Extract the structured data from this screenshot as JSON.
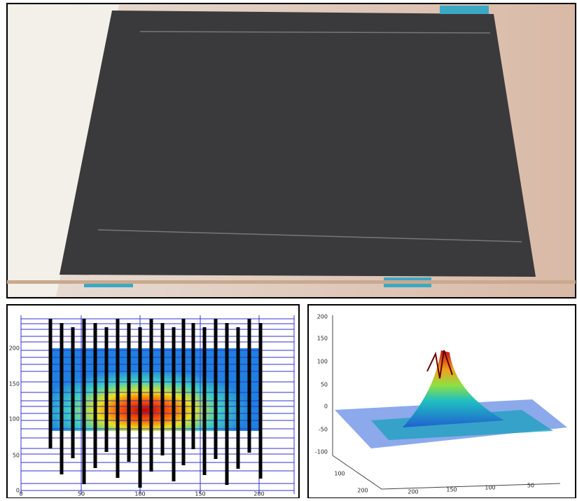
{
  "heatmap": {
    "yticks": [
      200,
      150,
      100,
      50,
      0
    ],
    "xticks": [
      0,
      50,
      100,
      150,
      200
    ]
  },
  "surface": {
    "zticks": [
      200,
      150,
      100,
      50,
      0,
      -50,
      -100
    ],
    "yticks": [
      100,
      200
    ],
    "xticks": [
      200,
      150,
      100,
      50
    ]
  }
}
